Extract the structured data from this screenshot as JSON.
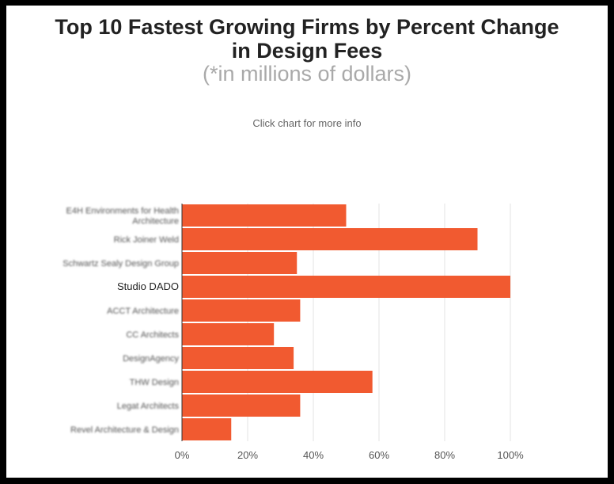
{
  "header": {
    "title_line1": "Top 10 Fastest Growing Firms by Percent Change",
    "title_line2": "in Design Fees",
    "subtitle": "(*in millions of dollars)",
    "hint": "Click chart for more info"
  },
  "colors": {
    "bar": "#f15a30",
    "grid": "#e3e3e3",
    "axis": "#333333"
  },
  "chart_data": {
    "type": "bar",
    "orientation": "horizontal",
    "title": "Top 10 Fastest Growing Firms by Percent Change in Design Fees",
    "subtitle": "(*in millions of dollars)",
    "categories": [
      {
        "lines": [
          "E4H Environments for Health",
          "Architecture"
        ],
        "blurred": true
      },
      {
        "lines": [
          "Rick Joiner Weld"
        ],
        "blurred": true
      },
      {
        "lines": [
          "Schwartz Sealy Design Group"
        ],
        "blurred": true
      },
      {
        "lines": [
          "Studio DADO"
        ],
        "blurred": false
      },
      {
        "lines": [
          "ACCT Architecture"
        ],
        "blurred": true
      },
      {
        "lines": [
          "CC Architects"
        ],
        "blurred": true
      },
      {
        "lines": [
          "DesignAgency"
        ],
        "blurred": true
      },
      {
        "lines": [
          "THW Design"
        ],
        "blurred": true
      },
      {
        "lines": [
          "Legat Architects"
        ],
        "blurred": true
      },
      {
        "lines": [
          "Revel Architecture & Design"
        ],
        "blurred": true
      }
    ],
    "values": [
      50,
      90,
      35,
      100,
      36,
      28,
      34,
      58,
      36,
      15
    ],
    "xlim": [
      0,
      100
    ],
    "x_ticks": [
      "0%",
      "20%",
      "40%",
      "60%",
      "80%",
      "100%"
    ],
    "x_tick_values": [
      0,
      20,
      40,
      60,
      80,
      100
    ],
    "grid": true,
    "legend": "none"
  }
}
